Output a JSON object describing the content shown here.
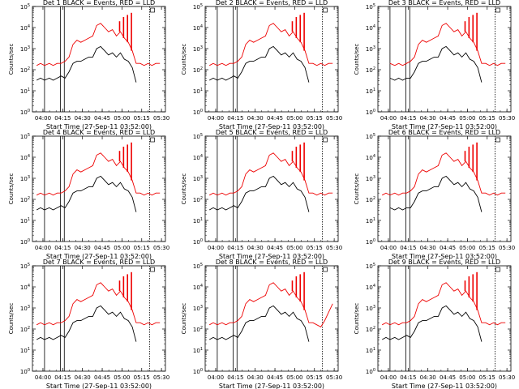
{
  "chart_data": {
    "type": "line",
    "x_tick_labels": [
      "04:00",
      "04:15",
      "04:30",
      "04:45",
      "05:00",
      "05:15",
      "05:30"
    ],
    "x_tick_hours": [
      4.0,
      4.25,
      4.5,
      4.75,
      5.0,
      5.25,
      5.5
    ],
    "xlim_hours": [
      3.867,
      5.55
    ],
    "xlabel": "Start Time (27-Sep-11 03:52:00)",
    "ylabel": "Counts/sec",
    "y_log": true,
    "ylim_exponents": [
      0,
      5
    ],
    "y_tick_labels": [
      "10^0",
      "10^1",
      "10^2",
      "10^3",
      "10^4",
      "10^5"
    ],
    "series_legend": {
      "black": "Events",
      "red": "LLD"
    },
    "colors": {
      "events": "#000000",
      "lld": "#ee0000",
      "axis": "#000000"
    },
    "series_time_hours": [
      3.92,
      3.97,
      4.02,
      4.08,
      4.13,
      4.18,
      4.23,
      4.28,
      4.33,
      4.38,
      4.43,
      4.48,
      4.53,
      4.58,
      4.63,
      4.68,
      4.73,
      4.78,
      4.83,
      4.88,
      4.93,
      4.98,
      5.03,
      5.08,
      5.13,
      5.18,
      5.23,
      5.28,
      5.33,
      5.38,
      5.43,
      5.48
    ],
    "panels": [
      {
        "title": "Det 1 BLACK = Events, RED = LLD",
        "events_log10": [
          1.5,
          1.6,
          1.5,
          1.6,
          1.5,
          1.6,
          1.7,
          1.6,
          1.9,
          2.3,
          2.4,
          2.4,
          2.5,
          2.6,
          2.6,
          3.0,
          3.1,
          2.9,
          2.7,
          2.8,
          2.6,
          2.8,
          2.5,
          2.4,
          2.1,
          1.4,
          null,
          null,
          null,
          null,
          null,
          null
        ],
        "lld_log10": [
          2.2,
          2.3,
          2.2,
          2.3,
          2.2,
          2.3,
          2.3,
          2.4,
          2.6,
          3.2,
          3.4,
          3.3,
          3.4,
          3.5,
          3.6,
          4.1,
          4.2,
          4.0,
          3.8,
          3.9,
          3.6,
          3.8,
          3.5,
          3.3,
          2.9,
          2.3,
          2.3,
          2.2,
          2.3,
          2.2,
          2.3,
          2.3
        ],
        "events_vlines_hours": [
          4.02,
          4.22,
          4.27
        ],
        "lld_vlines_hours": [
          5.35
        ],
        "lld_spikes": [
          {
            "t": 4.97,
            "log10": 4.3
          },
          {
            "t": 5.02,
            "log10": 4.5
          },
          {
            "t": 5.07,
            "log10": 4.6
          },
          {
            "t": 5.12,
            "log10": 4.7
          }
        ],
        "marker_t": 5.35
      },
      {
        "title": "Det 2 BLACK = Events, RED = LLD",
        "events_log10": [
          1.5,
          1.6,
          1.5,
          1.6,
          1.5,
          1.6,
          1.7,
          1.6,
          1.9,
          2.3,
          2.4,
          2.4,
          2.5,
          2.6,
          2.6,
          3.0,
          3.1,
          2.9,
          2.7,
          2.8,
          2.6,
          2.8,
          2.5,
          2.4,
          2.1,
          1.4,
          null,
          null,
          null,
          null,
          null,
          null
        ],
        "lld_log10": [
          2.2,
          2.3,
          2.2,
          2.3,
          2.2,
          2.3,
          2.3,
          2.4,
          2.6,
          3.2,
          3.4,
          3.3,
          3.4,
          3.5,
          3.6,
          4.1,
          4.2,
          4.0,
          3.8,
          3.9,
          3.6,
          3.8,
          3.5,
          3.3,
          2.9,
          2.3,
          2.3,
          2.2,
          2.3,
          2.2,
          2.3,
          2.3
        ],
        "events_vlines_hours": [
          4.02,
          4.22,
          4.27
        ],
        "lld_vlines_hours": [
          5.35
        ],
        "lld_spikes": [
          {
            "t": 4.97,
            "log10": 4.3
          },
          {
            "t": 5.02,
            "log10": 4.5
          },
          {
            "t": 5.07,
            "log10": 4.6
          },
          {
            "t": 5.12,
            "log10": 4.7
          }
        ],
        "marker_t": 5.35
      },
      {
        "title": "Det 3 BLACK = Events, RED = LLD",
        "events_log10": [
          null,
          null,
          1.6,
          1.5,
          1.6,
          1.5,
          1.6,
          1.6,
          1.9,
          2.3,
          2.4,
          2.4,
          2.5,
          2.6,
          2.6,
          3.0,
          3.1,
          2.9,
          2.7,
          2.8,
          2.6,
          2.8,
          2.5,
          2.4,
          2.1,
          1.4,
          null,
          null,
          null,
          null,
          null,
          null
        ],
        "lld_log10": [
          null,
          null,
          2.3,
          2.2,
          2.3,
          2.2,
          2.3,
          2.4,
          2.6,
          3.2,
          3.4,
          3.3,
          3.4,
          3.5,
          3.6,
          4.1,
          4.2,
          4.0,
          3.8,
          3.9,
          3.6,
          3.8,
          3.5,
          3.3,
          2.9,
          2.3,
          2.3,
          2.2,
          2.3,
          2.2,
          2.3,
          2.3
        ],
        "events_vlines_hours": [
          4.02,
          4.22,
          4.27
        ],
        "lld_vlines_hours": [
          5.35
        ],
        "lld_spikes": [
          {
            "t": 4.97,
            "log10": 4.3
          },
          {
            "t": 5.02,
            "log10": 4.5
          },
          {
            "t": 5.07,
            "log10": 4.6
          },
          {
            "t": 5.12,
            "log10": 4.7
          }
        ],
        "marker_t": 5.35
      },
      {
        "title": "Det 4 BLACK = Events, RED = LLD",
        "events_log10": [
          1.5,
          1.6,
          1.5,
          1.6,
          1.5,
          1.6,
          1.7,
          1.6,
          1.9,
          2.3,
          2.4,
          2.4,
          2.5,
          2.6,
          2.6,
          3.0,
          3.1,
          2.9,
          2.7,
          2.8,
          2.6,
          2.8,
          2.5,
          2.4,
          2.1,
          1.4,
          null,
          null,
          null,
          null,
          null,
          null
        ],
        "lld_log10": [
          2.2,
          2.3,
          2.2,
          2.3,
          2.2,
          2.3,
          2.3,
          2.4,
          2.6,
          3.2,
          3.4,
          3.3,
          3.4,
          3.5,
          3.6,
          4.1,
          4.2,
          4.0,
          3.8,
          3.9,
          3.6,
          3.8,
          3.5,
          3.3,
          2.9,
          2.3,
          2.3,
          2.2,
          2.3,
          2.2,
          2.3,
          2.3
        ],
        "events_vlines_hours": [
          4.02,
          4.22,
          4.27
        ],
        "lld_vlines_hours": [
          5.35
        ],
        "lld_spikes": [
          {
            "t": 4.97,
            "log10": 4.3
          },
          {
            "t": 5.02,
            "log10": 4.5
          },
          {
            "t": 5.07,
            "log10": 4.6
          },
          {
            "t": 5.12,
            "log10": 4.7
          }
        ],
        "marker_t": 5.35
      },
      {
        "title": "Det 5 BLACK = Events, RED = LLD",
        "events_log10": [
          1.5,
          1.6,
          1.5,
          1.6,
          1.5,
          1.6,
          1.7,
          1.6,
          1.9,
          2.3,
          2.4,
          2.4,
          2.5,
          2.6,
          2.6,
          3.0,
          3.1,
          2.9,
          2.7,
          2.8,
          2.6,
          2.8,
          2.5,
          2.4,
          2.1,
          1.4,
          null,
          null,
          null,
          null,
          null,
          null
        ],
        "lld_log10": [
          2.2,
          2.3,
          2.2,
          2.3,
          2.2,
          2.3,
          2.3,
          2.4,
          2.6,
          3.2,
          3.4,
          3.3,
          3.4,
          3.5,
          3.6,
          4.1,
          4.2,
          4.0,
          3.8,
          3.9,
          3.6,
          3.8,
          3.5,
          3.3,
          2.9,
          2.3,
          2.3,
          2.2,
          2.3,
          2.2,
          2.3,
          2.3
        ],
        "events_vlines_hours": [
          4.02,
          4.22,
          4.27
        ],
        "lld_vlines_hours": [
          5.35
        ],
        "lld_spikes": [
          {
            "t": 4.97,
            "log10": 4.3
          },
          {
            "t": 5.02,
            "log10": 4.5
          },
          {
            "t": 5.07,
            "log10": 4.6
          },
          {
            "t": 5.12,
            "log10": 4.7
          }
        ],
        "marker_t": 5.35
      },
      {
        "title": "Det 6 BLACK = Events, RED = LLD",
        "events_log10": [
          null,
          null,
          1.6,
          1.5,
          1.6,
          1.5,
          1.6,
          1.6,
          1.9,
          2.3,
          2.4,
          2.4,
          2.5,
          2.6,
          2.6,
          3.0,
          3.1,
          2.9,
          2.7,
          2.8,
          2.6,
          2.8,
          2.5,
          2.4,
          2.1,
          1.4,
          null,
          null,
          null,
          null,
          null,
          null
        ],
        "lld_log10": [
          2.2,
          2.3,
          2.2,
          2.3,
          2.2,
          2.3,
          2.3,
          2.4,
          2.6,
          3.2,
          3.4,
          3.3,
          3.4,
          3.5,
          3.6,
          4.1,
          4.2,
          4.0,
          3.8,
          3.9,
          3.6,
          3.8,
          3.5,
          3.3,
          2.9,
          2.3,
          2.3,
          2.2,
          2.3,
          2.2,
          2.3,
          2.3
        ],
        "events_vlines_hours": [
          4.02,
          4.22,
          4.27
        ],
        "lld_vlines_hours": [
          5.35
        ],
        "lld_spikes": [
          {
            "t": 4.97,
            "log10": 4.3
          },
          {
            "t": 5.02,
            "log10": 4.5
          },
          {
            "t": 5.07,
            "log10": 4.6
          },
          {
            "t": 5.12,
            "log10": 4.7
          }
        ],
        "marker_t": 5.35
      },
      {
        "title": "Det 7 BLACK = Events, RED = LLD",
        "events_log10": [
          1.5,
          1.6,
          1.5,
          1.6,
          1.5,
          1.6,
          1.7,
          1.6,
          1.9,
          2.3,
          2.4,
          2.4,
          2.5,
          2.6,
          2.6,
          3.0,
          3.1,
          2.9,
          2.7,
          2.8,
          2.6,
          2.8,
          2.5,
          2.4,
          2.1,
          1.4,
          null,
          null,
          null,
          null,
          null,
          null
        ],
        "lld_log10": [
          2.2,
          2.3,
          2.2,
          2.3,
          2.2,
          2.3,
          2.3,
          2.4,
          2.6,
          3.2,
          3.4,
          3.3,
          3.4,
          3.5,
          3.6,
          4.1,
          4.2,
          4.0,
          3.8,
          3.9,
          3.6,
          3.8,
          3.5,
          3.3,
          2.9,
          2.3,
          2.3,
          2.2,
          2.3,
          2.2,
          2.3,
          2.3
        ],
        "events_vlines_hours": [
          4.02,
          4.22,
          4.27
        ],
        "lld_vlines_hours": [
          5.35
        ],
        "lld_spikes": [
          {
            "t": 4.97,
            "log10": 4.3
          },
          {
            "t": 5.02,
            "log10": 4.5
          },
          {
            "t": 5.07,
            "log10": 4.6
          },
          {
            "t": 5.12,
            "log10": 4.7
          }
        ],
        "marker_t": 5.35
      },
      {
        "title": "Det 8 BLACK = Events, RED = LLD",
        "events_log10": [
          1.5,
          1.6,
          1.5,
          1.6,
          1.5,
          1.6,
          1.7,
          1.6,
          1.9,
          2.3,
          2.4,
          2.4,
          2.5,
          2.6,
          2.6,
          3.0,
          3.1,
          2.9,
          2.7,
          2.8,
          2.6,
          2.8,
          2.5,
          2.4,
          2.1,
          1.4,
          null,
          null,
          null,
          null,
          null,
          null
        ],
        "lld_log10": [
          2.2,
          2.3,
          2.2,
          2.3,
          2.2,
          2.3,
          2.3,
          2.4,
          2.6,
          3.2,
          3.4,
          3.3,
          3.4,
          3.5,
          3.6,
          4.1,
          4.2,
          4.0,
          3.8,
          3.9,
          3.6,
          3.8,
          3.5,
          3.3,
          2.9,
          2.3,
          2.3,
          2.2,
          2.1,
          2.4,
          2.8,
          3.2
        ],
        "events_vlines_hours": [
          4.02,
          4.22,
          4.27
        ],
        "lld_vlines_hours": [
          5.35
        ],
        "lld_spikes": [
          {
            "t": 4.97,
            "log10": 4.3
          },
          {
            "t": 5.02,
            "log10": 4.5
          },
          {
            "t": 5.07,
            "log10": 4.6
          },
          {
            "t": 5.12,
            "log10": 4.7
          }
        ],
        "marker_t": 5.35
      },
      {
        "title": "Det 9 BLACK = Events, RED = LLD",
        "events_log10": [
          1.5,
          1.6,
          1.5,
          1.6,
          1.5,
          1.6,
          1.7,
          1.6,
          1.9,
          2.3,
          2.4,
          2.4,
          2.5,
          2.6,
          2.6,
          3.0,
          3.1,
          2.9,
          2.7,
          2.8,
          2.6,
          2.8,
          2.5,
          2.4,
          2.1,
          1.4,
          null,
          null,
          null,
          null,
          null,
          null
        ],
        "lld_log10": [
          2.2,
          2.3,
          2.2,
          2.3,
          2.2,
          2.3,
          2.3,
          2.4,
          2.6,
          3.2,
          3.4,
          3.3,
          3.4,
          3.5,
          3.6,
          4.1,
          4.2,
          4.0,
          3.8,
          3.9,
          3.6,
          3.8,
          3.5,
          3.3,
          2.9,
          2.3,
          2.3,
          2.2,
          2.3,
          2.2,
          2.3,
          2.3
        ],
        "events_vlines_hours": [
          4.02,
          4.22,
          4.27
        ],
        "lld_vlines_hours": [
          5.35
        ],
        "lld_spikes": [
          {
            "t": 4.97,
            "log10": 4.3
          },
          {
            "t": 5.02,
            "log10": 4.5
          },
          {
            "t": 5.07,
            "log10": 4.6
          },
          {
            "t": 5.12,
            "log10": 4.7
          }
        ],
        "marker_t": 5.35
      }
    ]
  }
}
